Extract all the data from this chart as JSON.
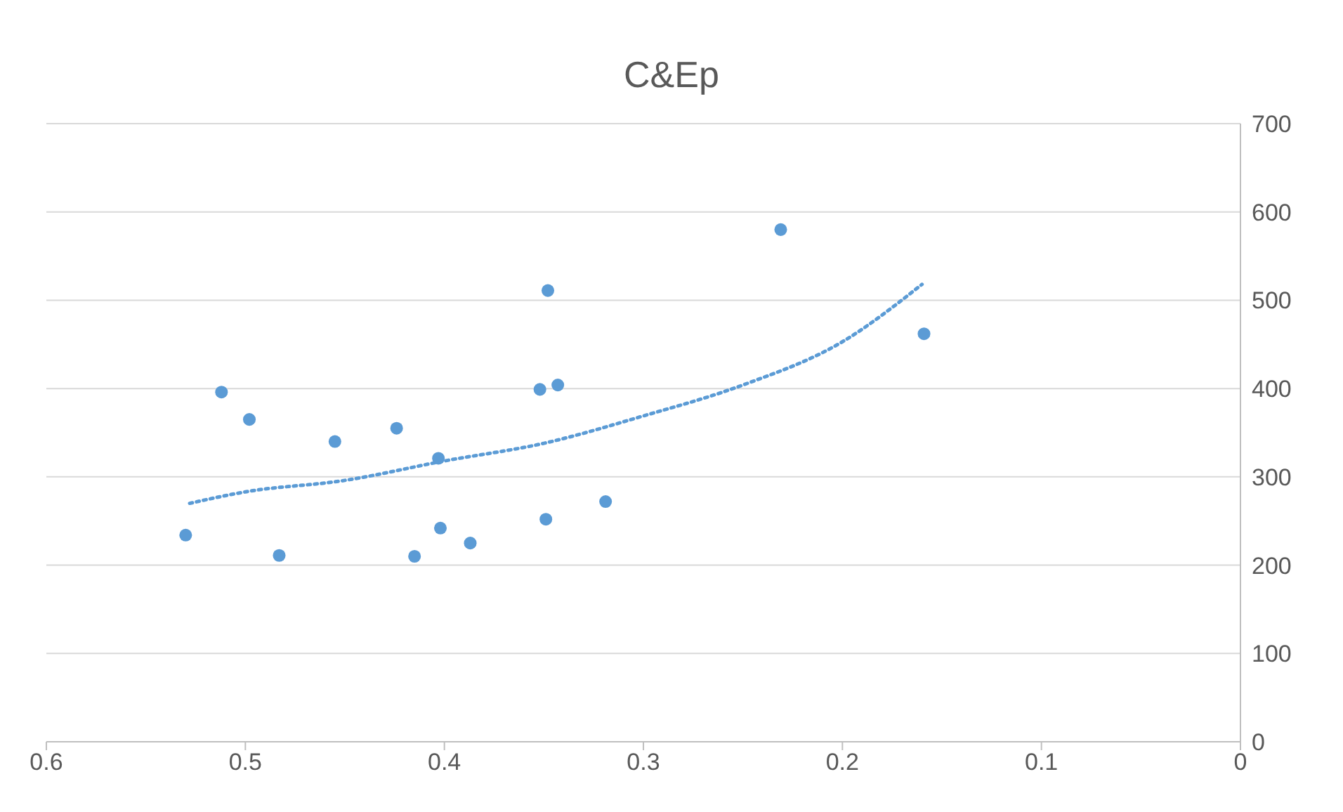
{
  "chart_data": {
    "type": "scatter",
    "title": "C&Ep",
    "xlim": [
      0.6,
      0
    ],
    "xticks": [
      0.6,
      0.5,
      0.4,
      0.3,
      0.2,
      0.1,
      0
    ],
    "ylim": [
      0,
      700
    ],
    "yticks": [
      0,
      100,
      200,
      300,
      400,
      500,
      600,
      700
    ],
    "grid": "y",
    "series": [
      {
        "marker": "circle",
        "color": "#5b9bd5",
        "x": [
          0.53,
          0.512,
          0.498,
          0.483,
          0.455,
          0.424,
          0.415,
          0.403,
          0.402,
          0.387,
          0.352,
          0.348,
          0.349,
          0.343,
          0.319,
          0.231,
          0.159
        ],
        "values": [
          234,
          396,
          365,
          211,
          340,
          355,
          210,
          321,
          242,
          225,
          399,
          511,
          252,
          404,
          272,
          580,
          462
        ]
      },
      {
        "type": "line",
        "marker": "none",
        "color": "#5b9bd5",
        "line_style": "dotted",
        "x": [
          0.528,
          0.5,
          0.45,
          0.4,
          0.35,
          0.3,
          0.25,
          0.2,
          0.16
        ],
        "values": [
          270,
          283,
          296,
          318,
          338,
          369,
          404,
          453,
          518
        ]
      }
    ]
  }
}
